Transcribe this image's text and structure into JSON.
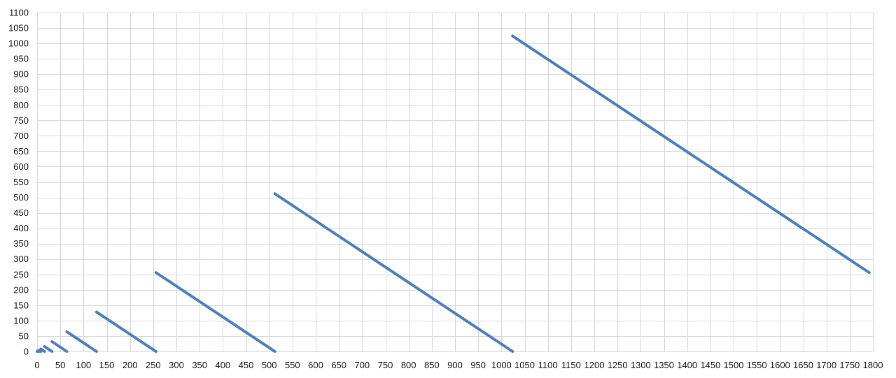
{
  "chart_data": {
    "type": "line",
    "title": "",
    "xlabel": "",
    "ylabel": "",
    "xlim": [
      0,
      1800
    ],
    "ylim": [
      0,
      1100
    ],
    "x_ticks": [
      0,
      50,
      100,
      150,
      200,
      250,
      300,
      350,
      400,
      450,
      500,
      550,
      600,
      650,
      700,
      750,
      800,
      850,
      900,
      950,
      1000,
      1050,
      1100,
      1150,
      1200,
      1250,
      1300,
      1350,
      1400,
      1450,
      1500,
      1550,
      1600,
      1650,
      1700,
      1750,
      1800
    ],
    "y_ticks": [
      0,
      50,
      100,
      150,
      200,
      250,
      300,
      350,
      400,
      450,
      500,
      550,
      600,
      650,
      700,
      750,
      800,
      850,
      900,
      950,
      1000,
      1050,
      1100
    ],
    "grid": true,
    "legend": "none",
    "color": "#4f81bd",
    "series": [
      {
        "segments": [
          [
            [
              0,
              0
            ],
            [
              2,
              0
            ]
          ],
          [
            [
              2,
              2
            ],
            [
              4,
              0
            ]
          ],
          [
            [
              4,
              4
            ],
            [
              8,
              0
            ]
          ],
          [
            [
              8,
              8
            ],
            [
              16,
              0
            ]
          ],
          [
            [
              16,
              16
            ],
            [
              32,
              0
            ]
          ],
          [
            [
              32,
              32
            ],
            [
              64,
              0
            ]
          ],
          [
            [
              64,
              64
            ],
            [
              128,
              0
            ]
          ],
          [
            [
              128,
              128
            ],
            [
              256,
              0
            ]
          ],
          [
            [
              256,
              256
            ],
            [
              512,
              0
            ]
          ],
          [
            [
              512,
              512
            ],
            [
              1024,
              0
            ]
          ],
          [
            [
              1024,
              1024
            ],
            [
              1792,
              256
            ]
          ]
        ]
      }
    ]
  }
}
